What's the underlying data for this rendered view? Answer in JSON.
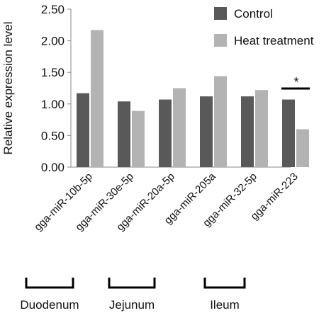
{
  "chart_data": {
    "type": "bar",
    "title": "",
    "xlabel": "",
    "ylabel": "Relative expression level",
    "ylim": [
      0,
      2.5
    ],
    "yticks": [
      "0.00",
      "0.50",
      "1.00",
      "1.50",
      "2.00",
      "2.50"
    ],
    "grid": false,
    "legend_position": "top-right",
    "categories": [
      "gga-miR-10b-5p",
      "gga-miR-30e-5p",
      "gga-miR-20a-5p",
      "gga-miR-205a",
      "gga-miR-32-5p",
      "gga-miR-223"
    ],
    "series": [
      {
        "name": "Control",
        "color": "#595959",
        "values": [
          1.17,
          1.04,
          1.07,
          1.12,
          1.12,
          1.07
        ]
      },
      {
        "name": "Heat treatment",
        "color": "#b3b3b3",
        "values": [
          2.17,
          0.89,
          1.25,
          1.44,
          1.22,
          0.6
        ]
      }
    ],
    "annotations": [
      {
        "text": "*",
        "category": "gga-miR-223"
      }
    ],
    "groups": [
      {
        "label": "Duodenum",
        "categories": [
          "gga-miR-10b-5p",
          "gga-miR-30e-5p"
        ]
      },
      {
        "label": "Jejunum",
        "categories": [
          "gga-miR-20a-5p",
          "gga-miR-205a"
        ]
      },
      {
        "label": "Ileum",
        "categories": [
          "gga-miR-32-5p",
          "gga-miR-223"
        ]
      }
    ]
  }
}
